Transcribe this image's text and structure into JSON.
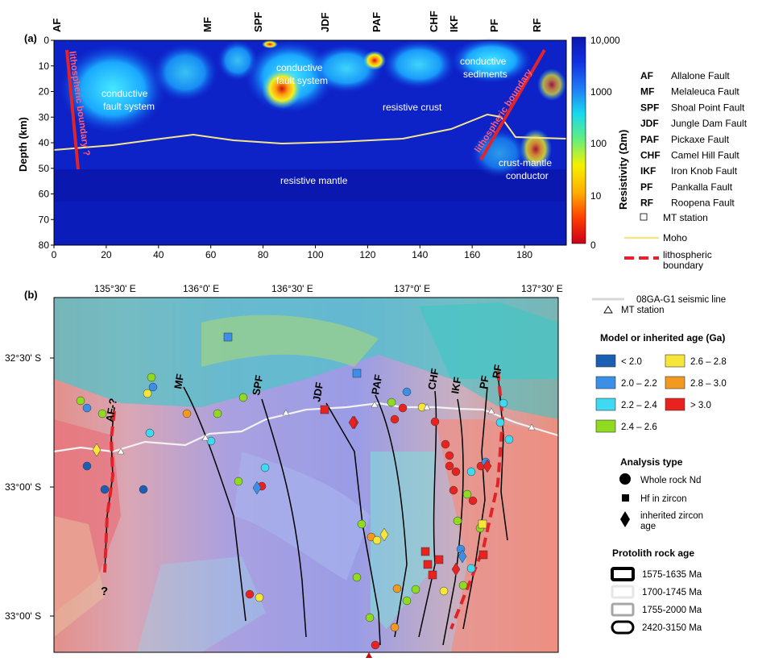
{
  "panel_a": {
    "tag": "(a)",
    "faults_top": [
      {
        "abbr": "AF"
      },
      {
        "abbr": "MF"
      },
      {
        "abbr": "SPF"
      },
      {
        "abbr": "JDF"
      },
      {
        "abbr": "PAF"
      },
      {
        "abbr": "CHF"
      },
      {
        "abbr": "IKF"
      },
      {
        "abbr": "PF"
      },
      {
        "abbr": "RF"
      }
    ],
    "y_axis_label": "Depth (km)",
    "y_ticks": [
      "0",
      "10",
      "20",
      "30",
      "40",
      "50",
      "60",
      "70",
      "80"
    ],
    "x_ticks": [
      "0",
      "20",
      "40",
      "60",
      "80",
      "100",
      "120",
      "140",
      "160",
      "180"
    ],
    "annotations": {
      "lith_left": "lithospheric boundary ?",
      "cond_fault_left": [
        "conductive",
        "fault system"
      ],
      "cond_fault_mid": [
        "conductive",
        "fault system"
      ],
      "cond_sed": [
        "conductive",
        "sediments"
      ],
      "resistive_crust": "resistive crust",
      "lith_right": "lithospheric boundary",
      "crust_mantle": [
        "crust-mantle",
        "conductor"
      ],
      "resistive_mantle": "resistive mantle"
    },
    "colorbar": {
      "label": "Resistivity (Ωm)",
      "ticks": [
        "10,000",
        "1000",
        "100",
        "10",
        "0"
      ]
    },
    "legend": [
      {
        "abbr": "AF",
        "name": "Allalone Fault"
      },
      {
        "abbr": "MF",
        "name": "Melaleuca Fault"
      },
      {
        "abbr": "SPF",
        "name": "Shoal Point Fault"
      },
      {
        "abbr": "JDF",
        "name": "Jungle Dam Fault"
      },
      {
        "abbr": "PAF",
        "name": "Pickaxe Fault"
      },
      {
        "abbr": "CHF",
        "name": "Camel Hill Fault"
      },
      {
        "abbr": "IKF",
        "name": "Iron Knob Fault"
      },
      {
        "abbr": "PF",
        "name": "Pankalla Fault"
      },
      {
        "abbr": "RF",
        "name": "Roopena Fault"
      }
    ],
    "legend_mt": "MT station",
    "legend_moho": "Moho",
    "legend_lith": [
      "lithospheric",
      "boundary"
    ],
    "colors": {
      "moho": "#f2e58c",
      "lith": "#e0242a"
    }
  },
  "panel_b": {
    "tag": "(b)",
    "lon_ticks": [
      "135°30' E",
      "136°0' E",
      "136°30' E",
      "137°0' E",
      "137°30' E"
    ],
    "lat_ticks": [
      "32°30' S",
      "33°00' S",
      "33°00' S"
    ],
    "map_faults": [
      "AF-?",
      "MF",
      "SPF",
      "JDF",
      "PAF",
      "CHF",
      "IKF",
      "PF",
      "RF"
    ],
    "question_mark": "?",
    "legend_seismic": "08GA-G1 seismic line",
    "legend_mt": "MT station",
    "age_title": "Model or inherited age (Ga)",
    "ages": [
      {
        "label": "< 2.0",
        "color": "#1a5fb4"
      },
      {
        "label": "2.0 – 2.2",
        "color": "#3c8fe6"
      },
      {
        "label": "2.2 – 2.4",
        "color": "#3fd9f2"
      },
      {
        "label": "2.4 – 2.6",
        "color": "#8edb1f"
      },
      {
        "label": "2.6 – 2.8",
        "color": "#f7e63a"
      },
      {
        "label": "2.8 – 3.0",
        "color": "#f29a1f"
      },
      {
        "label": "> 3.0",
        "color": "#e8231f"
      }
    ],
    "analysis_title": "Analysis type",
    "analysis": [
      "Whole rock Nd",
      "Hf in zircon",
      [
        "inherited zircon",
        "age"
      ]
    ],
    "protolith_title": "Protolith rock age",
    "protolith": [
      {
        "label": "1575-1635 Ma",
        "stroke": "#000000"
      },
      {
        "label": "1700-1745 Ma",
        "stroke": "#e6e6e6"
      },
      {
        "label": "1755-2000 Ma",
        "stroke": "#a6a6a6"
      },
      {
        "label": "2420-3150 Ma",
        "stroke": "#000000"
      }
    ]
  }
}
